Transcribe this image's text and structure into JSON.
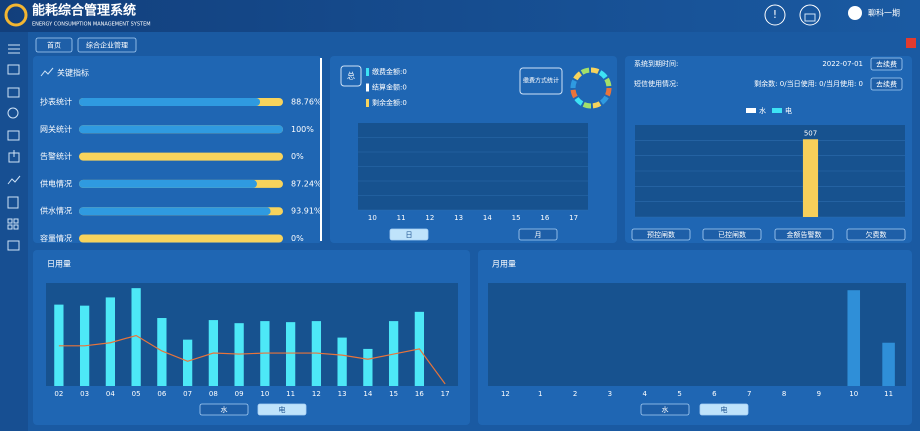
{
  "header": {
    "title": "能耗综合管理系统",
    "subtitle": "ENERGY CONSUMPTION MANAGEMENT SYSTEM",
    "user": "聊科一期"
  },
  "tabs": [
    "首页",
    "综合企业管理"
  ],
  "chart_data": [
    {
      "type": "progress",
      "title": "关键指标",
      "categories": [
        "抄表统计",
        "网关统计",
        "告警统计",
        "供电情况",
        "供水情况",
        "容量情况"
      ],
      "values": [
        88.76,
        100,
        0,
        87.24,
        93.91,
        0
      ],
      "value_labels": [
        "88.76%",
        "100%",
        "0%",
        "87.24%",
        "93.91%",
        "0%"
      ],
      "xlim": [
        0,
        100
      ],
      "color": "#2f9ae0",
      "track_color": "#f7d35c"
    },
    {
      "type": "bar",
      "total_label": "总",
      "donut_label": "缴费方式统计",
      "legend_items": [
        {
          "name": "缴费金额:0",
          "color": "#3de3f5"
        },
        {
          "name": "结算金额:0",
          "color": "#ffffff"
        },
        {
          "name": "剩余金额:0",
          "color": "#f7d35c"
        }
      ],
      "categories": [
        "10",
        "11",
        "12",
        "13",
        "14",
        "15",
        "16",
        "17"
      ],
      "grid": true,
      "buttons": [
        "日",
        "月"
      ],
      "active_button": 0
    },
    {
      "type": "bar",
      "info": [
        {
          "label": "系统到期时间:",
          "value": "2022-07-01",
          "button": "去续费"
        },
        {
          "label": "短信使用情况:",
          "value": "剩余数: 0/当日使用: 0/当月使用: 0",
          "button": "去续费"
        }
      ],
      "categories": [
        null,
        null,
        null,
        null,
        null,
        null,
        null,
        null,
        null,
        null
      ],
      "series": [
        {
          "name": "水",
          "color": "#ffffff",
          "values": [
            null,
            null,
            null,
            null,
            null,
            null,
            null,
            null,
            null,
            null
          ]
        },
        {
          "name": "电",
          "color": "#3de3f5",
          "values": [
            null,
            null,
            null,
            null,
            null,
            null,
            507,
            null,
            null,
            null
          ],
          "value_labels": [
            null,
            null,
            null,
            null,
            null,
            null,
            "507",
            null,
            null,
            null
          ]
        }
      ],
      "bar_color": "#f7cf5a",
      "ylim": [
        0,
        600
      ],
      "grid": true,
      "buttons": [
        "预控闸数",
        "已控闸数",
        "金额告警数",
        "欠费数"
      ]
    },
    {
      "type": "bar",
      "title": "日用量",
      "categories": [
        "02",
        "03",
        "04",
        "05",
        "06",
        "07",
        "08",
        "09",
        "10",
        "11",
        "12",
        "13",
        "14",
        "15",
        "16",
        "17"
      ],
      "values": [
        79,
        78,
        86,
        95,
        66,
        45,
        64,
        61,
        63,
        62,
        63,
        47,
        36,
        63,
        72,
        0
      ],
      "line_values": [
        39,
        39,
        42,
        49,
        34,
        24,
        32,
        31,
        32,
        32,
        32,
        30,
        26,
        31,
        36,
        2
      ],
      "color": "#4de8f7",
      "line_color": "#e8743b",
      "ylim": [
        0,
        100
      ],
      "buttons": [
        "水",
        "电"
      ],
      "active_button": 1
    },
    {
      "type": "bar",
      "title": "月用量",
      "categories": [
        "12",
        "1",
        "2",
        "3",
        "4",
        "5",
        "6",
        "7",
        "8",
        "9",
        "10",
        "11"
      ],
      "values": [
        null,
        null,
        null,
        null,
        null,
        null,
        null,
        null,
        null,
        null,
        93,
        42
      ],
      "color": "#2f8fd8",
      "ylim": [
        0,
        100
      ],
      "buttons": [
        "水",
        "电"
      ],
      "active_button": 1
    }
  ]
}
